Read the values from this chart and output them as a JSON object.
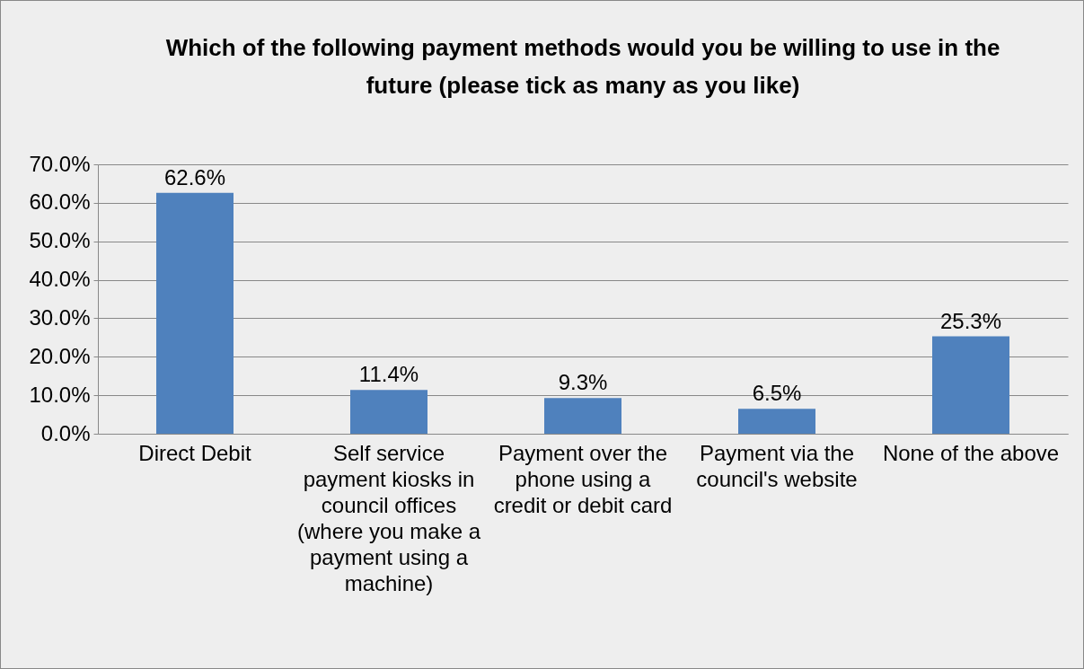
{
  "chart_data": {
    "type": "bar",
    "title": "Which of the following payment methods would you be willing to use in the future (please tick as many as you like)",
    "categories": [
      "Direct Debit",
      "Self service payment kiosks in council offices (where you make a payment using a machine)",
      "Payment over the phone using a credit or debit card",
      "Payment via the council's website",
      "None of the above"
    ],
    "values": [
      62.6,
      11.4,
      9.3,
      6.5,
      25.3
    ],
    "value_labels": [
      "62.6%",
      "11.4%",
      "9.3%",
      "6.5%",
      "25.3%"
    ],
    "color": "#4f81bd",
    "ylim": [
      0,
      70
    ],
    "yticks": [
      {
        "value": 0,
        "label": "0.0%"
      },
      {
        "value": 10,
        "label": "10.0%"
      },
      {
        "value": 20,
        "label": "20.0%"
      },
      {
        "value": 30,
        "label": "30.0%"
      },
      {
        "value": 40,
        "label": "40.0%"
      },
      {
        "value": 50,
        "label": "50.0%"
      },
      {
        "value": 60,
        "label": "60.0%"
      },
      {
        "value": 70,
        "label": "70.0%"
      }
    ],
    "grid": "y",
    "legend": false
  }
}
